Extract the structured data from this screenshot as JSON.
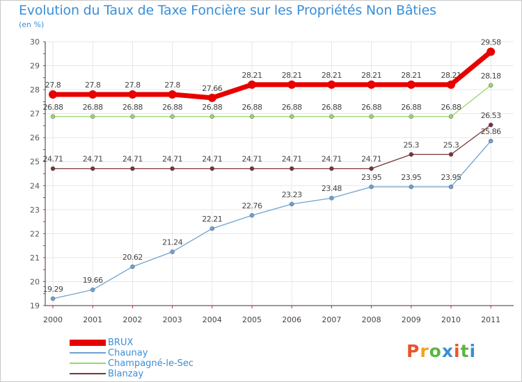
{
  "title": "Evolution du Taux de Taxe Foncière sur les Propriétés Non Bâties",
  "subtitle": "(en %)",
  "logo": {
    "text": "Proxiti",
    "colors": [
      "#e8552a",
      "#f2a31b",
      "#5ab548",
      "#3a8ed6",
      "#e8552a",
      "#5ab548",
      "#3a8ed6"
    ]
  },
  "chart_data": {
    "type": "line",
    "title": "Evolution du Taux de Taxe Foncière sur les Propriétés Non Bâties",
    "ylabel": "(en %)",
    "xlabel": "",
    "ylim": [
      19,
      30
    ],
    "yticks": [
      "19",
      "20",
      "21",
      "22",
      "23",
      "24",
      "25",
      "26",
      "27",
      "28",
      "29",
      "30"
    ],
    "categories": [
      "2000",
      "2001",
      "2002",
      "2003",
      "2004",
      "2005",
      "2006",
      "2007",
      "2008",
      "2009",
      "2010",
      "2011"
    ],
    "grid": true,
    "series": [
      {
        "name": "BRUX",
        "color": "#e80000",
        "values": [
          27.8,
          27.8,
          27.8,
          27.8,
          27.66,
          28.21,
          28.21,
          28.21,
          28.21,
          28.21,
          28.21,
          29.58
        ],
        "labels": [
          "27.8",
          "27.8",
          "27.8",
          "27.8",
          "27.66",
          "28.21",
          "28.21",
          "28.21",
          "28.21",
          "28.21",
          "28.21",
          "29.58"
        ]
      },
      {
        "name": "Chaunay",
        "color": "#6fa2cd",
        "values": [
          19.29,
          19.66,
          20.62,
          21.24,
          22.21,
          22.76,
          23.23,
          23.48,
          23.95,
          23.95,
          23.95,
          25.86
        ],
        "labels": [
          "19.29",
          "19.66",
          "20.62",
          "21.24",
          "22.21",
          "22.76",
          "23.23",
          "23.48",
          "23.95",
          "23.95",
          "23.95",
          "25.86"
        ]
      },
      {
        "name": "Champagné-le-Sec",
        "color": "#9ad66a",
        "values": [
          26.88,
          26.88,
          26.88,
          26.88,
          26.88,
          26.88,
          26.88,
          26.88,
          26.88,
          26.88,
          26.88,
          28.18
        ],
        "labels": [
          "26.88",
          "26.88",
          "26.88",
          "26.88",
          "26.88",
          "26.88",
          "26.88",
          "26.88",
          "26.88",
          "26.88",
          "26.88",
          "28.18"
        ]
      },
      {
        "name": "Blanzay",
        "color": "#7a3434",
        "values": [
          24.71,
          24.71,
          24.71,
          24.71,
          24.71,
          24.71,
          24.71,
          24.71,
          24.71,
          25.3,
          25.3,
          26.53
        ],
        "labels": [
          "24.71",
          "24.71",
          "24.71",
          "24.71",
          "24.71",
          "24.71",
          "24.71",
          "24.71",
          "24.71",
          "25.3",
          "25.3",
          "26.53"
        ]
      }
    ],
    "legend": "bottom-left"
  }
}
